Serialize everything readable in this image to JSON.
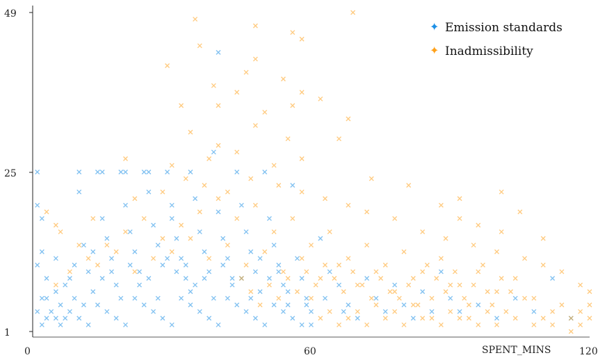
{
  "chart_data": {
    "type": "scatter",
    "title": "",
    "xlabel": "SPENT_MINS",
    "ylabel": "",
    "xlim": [
      0,
      120
    ],
    "ylim": [
      1,
      49
    ],
    "x_ticks": [
      0,
      60,
      120
    ],
    "y_ticks": [
      1,
      25,
      49
    ],
    "x_tick_labels": [
      "0",
      "60",
      "120"
    ],
    "y_tick_labels": [
      "1",
      "25",
      "49"
    ],
    "grid": false,
    "legend_position": "top-right",
    "marker": "x",
    "series": [
      {
        "name": "Emission standards",
        "color": "#1e90e6",
        "description_of_density": "dense near bottom, x 0-65, y 1-14, sparse up to y 25",
        "points": [
          [
            1,
            25
          ],
          [
            1,
            20
          ],
          [
            2,
            18
          ],
          [
            2,
            13
          ],
          [
            1,
            11
          ],
          [
            3,
            9
          ],
          [
            2,
            6
          ],
          [
            1,
            4
          ],
          [
            3,
            3
          ],
          [
            2,
            2
          ],
          [
            5,
            7
          ],
          [
            6,
            5
          ],
          [
            7,
            3
          ],
          [
            8,
            9
          ],
          [
            9,
            6
          ],
          [
            10,
            25
          ],
          [
            10,
            22
          ],
          [
            11,
            14
          ],
          [
            12,
            10
          ],
          [
            13,
            7
          ],
          [
            14,
            25
          ],
          [
            15,
            25
          ],
          [
            15,
            18
          ],
          [
            16,
            15
          ],
          [
            17,
            12
          ],
          [
            18,
            8
          ],
          [
            19,
            25
          ],
          [
            20,
            25
          ],
          [
            20,
            20
          ],
          [
            21,
            16
          ],
          [
            22,
            13
          ],
          [
            23,
            10
          ],
          [
            24,
            25
          ],
          [
            25,
            25
          ],
          [
            25,
            22
          ],
          [
            26,
            17
          ],
          [
            27,
            14
          ],
          [
            28,
            11
          ],
          [
            29,
            25
          ],
          [
            30,
            20
          ],
          [
            30,
            18
          ],
          [
            31,
            15
          ],
          [
            32,
            12
          ],
          [
            33,
            9
          ],
          [
            34,
            25
          ],
          [
            34,
            7
          ],
          [
            35,
            21
          ],
          [
            36,
            16
          ],
          [
            37,
            13
          ],
          [
            38,
            10
          ],
          [
            39,
            28
          ],
          [
            40,
            43
          ],
          [
            40,
            19
          ],
          [
            41,
            15
          ],
          [
            42,
            12
          ],
          [
            43,
            9
          ],
          [
            44,
            25
          ],
          [
            45,
            20
          ],
          [
            46,
            16
          ],
          [
            47,
            13
          ],
          [
            48,
            10
          ],
          [
            49,
            7
          ],
          [
            50,
            25
          ],
          [
            51,
            18
          ],
          [
            52,
            14
          ],
          [
            53,
            11
          ],
          [
            54,
            8
          ],
          [
            55,
            5
          ],
          [
            56,
            23
          ],
          [
            57,
            12
          ],
          [
            58,
            9
          ],
          [
            59,
            6
          ],
          [
            60,
            4
          ],
          [
            62,
            15
          ],
          [
            64,
            10
          ],
          [
            66,
            8
          ],
          [
            68,
            5
          ],
          [
            70,
            3
          ],
          [
            72,
            9
          ],
          [
            74,
            6
          ],
          [
            76,
            4
          ],
          [
            78,
            8
          ],
          [
            80,
            5
          ],
          [
            82,
            3
          ],
          [
            84,
            7
          ],
          [
            86,
            4
          ],
          [
            88,
            10
          ],
          [
            90,
            6
          ],
          [
            92,
            4
          ],
          [
            96,
            5
          ],
          [
            100,
            3
          ],
          [
            104,
            6
          ],
          [
            108,
            4
          ],
          [
            112,
            9
          ],
          [
            116,
            3
          ],
          [
            4,
            4
          ],
          [
            5,
            3
          ],
          [
            6,
            2
          ],
          [
            8,
            4
          ],
          [
            10,
            3
          ],
          [
            12,
            2
          ],
          [
            14,
            5
          ],
          [
            16,
            4
          ],
          [
            18,
            3
          ],
          [
            20,
            2
          ],
          [
            22,
            6
          ],
          [
            24,
            5
          ],
          [
            26,
            4
          ],
          [
            28,
            3
          ],
          [
            30,
            2
          ],
          [
            32,
            6
          ],
          [
            34,
            5
          ],
          [
            36,
            4
          ],
          [
            38,
            3
          ],
          [
            40,
            2
          ],
          [
            42,
            6
          ],
          [
            44,
            5
          ],
          [
            46,
            4
          ],
          [
            48,
            3
          ],
          [
            50,
            2
          ],
          [
            52,
            5
          ],
          [
            54,
            4
          ],
          [
            56,
            3
          ],
          [
            58,
            2
          ],
          [
            60,
            2
          ],
          [
            3,
            6
          ],
          [
            7,
            8
          ],
          [
            11,
            5
          ],
          [
            15,
            9
          ],
          [
            19,
            6
          ],
          [
            23,
            8
          ],
          [
            27,
            6
          ],
          [
            31,
            10
          ],
          [
            35,
            8
          ],
          [
            39,
            6
          ],
          [
            43,
            8
          ],
          [
            47,
            6
          ],
          [
            51,
            9
          ],
          [
            55,
            7
          ],
          [
            59,
            5
          ],
          [
            63,
            6
          ],
          [
            67,
            4
          ],
          [
            5,
            12
          ],
          [
            9,
            11
          ],
          [
            13,
            13
          ],
          [
            17,
            10
          ],
          [
            21,
            11
          ],
          [
            25,
            9
          ],
          [
            29,
            12
          ],
          [
            33,
            11
          ],
          [
            37,
            9
          ],
          [
            41,
            11
          ],
          [
            45,
            9
          ],
          [
            49,
            12
          ],
          [
            53,
            10
          ]
        ]
      },
      {
        "name": "Inadmissibility",
        "color": "#ffa11a",
        "description_of_density": "centered x 30-90, y 1-25, outliers up to y 49",
        "points": [
          [
            35,
            48
          ],
          [
            48,
            47
          ],
          [
            56,
            46
          ],
          [
            69,
            49
          ],
          [
            36,
            44
          ],
          [
            48,
            42
          ],
          [
            58,
            45
          ],
          [
            29,
            41
          ],
          [
            39,
            38
          ],
          [
            46,
            40
          ],
          [
            54,
            39
          ],
          [
            58,
            37
          ],
          [
            32,
            35
          ],
          [
            40,
            35
          ],
          [
            44,
            37
          ],
          [
            50,
            34
          ],
          [
            56,
            35
          ],
          [
            62,
            36
          ],
          [
            68,
            33
          ],
          [
            34,
            31
          ],
          [
            40,
            29
          ],
          [
            48,
            32
          ],
          [
            55,
            30
          ],
          [
            66,
            30
          ],
          [
            20,
            27
          ],
          [
            30,
            26
          ],
          [
            38,
            27
          ],
          [
            44,
            28
          ],
          [
            52,
            26
          ],
          [
            58,
            27
          ],
          [
            3,
            19
          ],
          [
            5,
            17
          ],
          [
            13,
            18
          ],
          [
            22,
            21
          ],
          [
            28,
            22
          ],
          [
            33,
            24
          ],
          [
            37,
            23
          ],
          [
            42,
            22
          ],
          [
            47,
            24
          ],
          [
            53,
            23
          ],
          [
            58,
            22
          ],
          [
            63,
            21
          ],
          [
            68,
            20
          ],
          [
            72,
            19
          ],
          [
            78,
            18
          ],
          [
            84,
            16
          ],
          [
            89,
            15
          ],
          [
            95,
            14
          ],
          [
            100,
            13
          ],
          [
            106,
            12
          ],
          [
            110,
            11
          ],
          [
            114,
            10
          ],
          [
            118,
            8
          ],
          [
            120,
            7
          ],
          [
            120,
            5
          ],
          [
            120,
            3
          ],
          [
            118,
            2
          ],
          [
            116,
            1
          ],
          [
            112,
            4
          ],
          [
            108,
            6
          ],
          [
            104,
            9
          ],
          [
            100,
            7
          ],
          [
            96,
            10
          ],
          [
            92,
            8
          ],
          [
            88,
            12
          ],
          [
            84,
            10
          ],
          [
            80,
            13
          ],
          [
            76,
            11
          ],
          [
            72,
            14
          ],
          [
            68,
            12
          ],
          [
            64,
            16
          ],
          [
            60,
            14
          ],
          [
            56,
            18
          ],
          [
            52,
            16
          ],
          [
            48,
            20
          ],
          [
            44,
            18
          ],
          [
            40,
            21
          ],
          [
            36,
            19
          ],
          [
            32,
            17
          ],
          [
            28,
            15
          ],
          [
            24,
            18
          ],
          [
            20,
            16
          ],
          [
            16,
            14
          ],
          [
            12,
            12
          ],
          [
            8,
            10
          ],
          [
            5,
            8
          ],
          [
            6,
            16
          ],
          [
            10,
            14
          ],
          [
            14,
            11
          ],
          [
            18,
            13
          ],
          [
            22,
            10
          ],
          [
            26,
            12
          ],
          [
            30,
            13
          ],
          [
            34,
            15
          ],
          [
            38,
            12
          ],
          [
            42,
            14
          ],
          [
            46,
            11
          ],
          [
            50,
            13
          ],
          [
            54,
            10
          ],
          [
            58,
            12
          ],
          [
            62,
            9
          ],
          [
            66,
            11
          ],
          [
            70,
            8
          ],
          [
            74,
            10
          ],
          [
            78,
            7
          ],
          [
            82,
            9
          ],
          [
            86,
            6
          ],
          [
            90,
            8
          ],
          [
            94,
            5
          ],
          [
            98,
            7
          ],
          [
            102,
            4
          ],
          [
            106,
            6
          ],
          [
            110,
            3
          ],
          [
            114,
            5
          ],
          [
            118,
            4
          ],
          [
            60,
            6
          ],
          [
            64,
            4
          ],
          [
            68,
            3
          ],
          [
            72,
            2
          ],
          [
            76,
            3
          ],
          [
            80,
            2
          ],
          [
            84,
            3
          ],
          [
            88,
            2
          ],
          [
            92,
            3
          ],
          [
            96,
            2
          ],
          [
            100,
            2
          ],
          [
            104,
            3
          ],
          [
            108,
            2
          ],
          [
            112,
            2
          ],
          [
            116,
            3
          ],
          [
            62,
            3
          ],
          [
            66,
            2
          ],
          [
            70,
            4
          ],
          [
            74,
            5
          ],
          [
            78,
            4
          ],
          [
            82,
            5
          ],
          [
            86,
            3
          ],
          [
            90,
            4
          ],
          [
            94,
            3
          ],
          [
            98,
            4
          ],
          [
            45,
            9
          ],
          [
            47,
            7
          ],
          [
            49,
            5
          ],
          [
            51,
            8
          ],
          [
            53,
            6
          ],
          [
            55,
            9
          ],
          [
            57,
            7
          ],
          [
            59,
            10
          ],
          [
            61,
            8
          ],
          [
            63,
            11
          ],
          [
            65,
            9
          ],
          [
            67,
            7
          ],
          [
            69,
            10
          ],
          [
            71,
            8
          ],
          [
            73,
            6
          ],
          [
            75,
            9
          ],
          [
            77,
            7
          ],
          [
            79,
            6
          ],
          [
            81,
            8
          ],
          [
            83,
            5
          ],
          [
            85,
            11
          ],
          [
            87,
            9
          ],
          [
            89,
            7
          ],
          [
            91,
            10
          ],
          [
            93,
            6
          ],
          [
            95,
            8
          ],
          [
            97,
            11
          ],
          [
            99,
            5
          ],
          [
            101,
            9
          ],
          [
            103,
            7
          ],
          [
            88,
            20
          ],
          [
            92,
            18
          ],
          [
            96,
            17
          ],
          [
            101,
            16
          ],
          [
            105,
            19
          ],
          [
            110,
            15
          ],
          [
            101,
            22
          ],
          [
            92,
            21
          ],
          [
            81,
            23
          ],
          [
            73,
            24
          ]
        ]
      }
    ]
  }
}
